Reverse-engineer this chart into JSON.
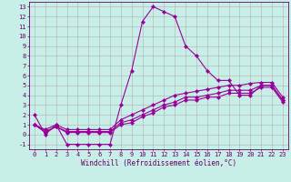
{
  "xlabel": "Windchill (Refroidissement éolien,°C)",
  "background_color": "#c8eee8",
  "grid_color": "#b0b0b0",
  "line_color": "#990099",
  "xlim": [
    -0.5,
    23.5
  ],
  "ylim": [
    -1.5,
    13.5
  ],
  "xticks": [
    0,
    1,
    2,
    3,
    4,
    5,
    6,
    7,
    8,
    9,
    10,
    11,
    12,
    13,
    14,
    15,
    16,
    17,
    18,
    19,
    20,
    21,
    22,
    23
  ],
  "yticks": [
    -1,
    0,
    1,
    2,
    3,
    4,
    5,
    6,
    7,
    8,
    9,
    10,
    11,
    12,
    13
  ],
  "line1_x": [
    0,
    1,
    2,
    3,
    4,
    5,
    6,
    7,
    8,
    9,
    10,
    11,
    12,
    13,
    14,
    15,
    16,
    17,
    18,
    19,
    20,
    21,
    22,
    23
  ],
  "line1_y": [
    2,
    0,
    1,
    -1,
    -1,
    -1,
    -1,
    -1,
    3,
    6.5,
    11.5,
    13,
    12.5,
    12,
    9,
    8,
    6.5,
    5.5,
    5.5,
    4,
    4,
    5,
    5,
    3.5
  ],
  "line2_x": [
    0,
    1,
    2,
    3,
    4,
    5,
    6,
    7,
    8,
    9,
    10,
    11,
    12,
    13,
    14,
    15,
    16,
    17,
    18,
    19,
    20,
    21,
    22,
    23
  ],
  "line2_y": [
    1,
    0.5,
    1,
    0.5,
    0.5,
    0.5,
    0.5,
    0.5,
    1.5,
    2.0,
    2.5,
    3.0,
    3.5,
    4.0,
    4.2,
    4.4,
    4.6,
    4.8,
    5.0,
    5.0,
    5.2,
    5.3,
    5.3,
    3.8
  ],
  "line3_x": [
    0,
    1,
    2,
    3,
    4,
    5,
    6,
    7,
    8,
    9,
    10,
    11,
    12,
    13,
    14,
    15,
    16,
    17,
    18,
    19,
    20,
    21,
    22,
    23
  ],
  "line3_y": [
    1,
    0.3,
    0.8,
    0.3,
    0.3,
    0.3,
    0.3,
    0.3,
    1.2,
    1.5,
    2.0,
    2.5,
    3.0,
    3.3,
    3.8,
    3.8,
    4.0,
    4.2,
    4.5,
    4.5,
    4.5,
    5.0,
    5.0,
    3.5
  ],
  "line4_x": [
    0,
    1,
    2,
    3,
    4,
    5,
    6,
    7,
    8,
    9,
    10,
    11,
    12,
    13,
    14,
    15,
    16,
    17,
    18,
    19,
    20,
    21,
    22,
    23
  ],
  "line4_y": [
    1,
    0.2,
    0.8,
    0.2,
    0.2,
    0.2,
    0.2,
    0.2,
    1.0,
    1.2,
    1.8,
    2.2,
    2.8,
    3.0,
    3.5,
    3.5,
    3.8,
    3.8,
    4.2,
    4.2,
    4.2,
    4.8,
    4.8,
    3.3
  ],
  "tick_fontsize": 5.0,
  "xlabel_fontsize": 5.5,
  "tick_color": "#660066",
  "spine_color": "#660066"
}
